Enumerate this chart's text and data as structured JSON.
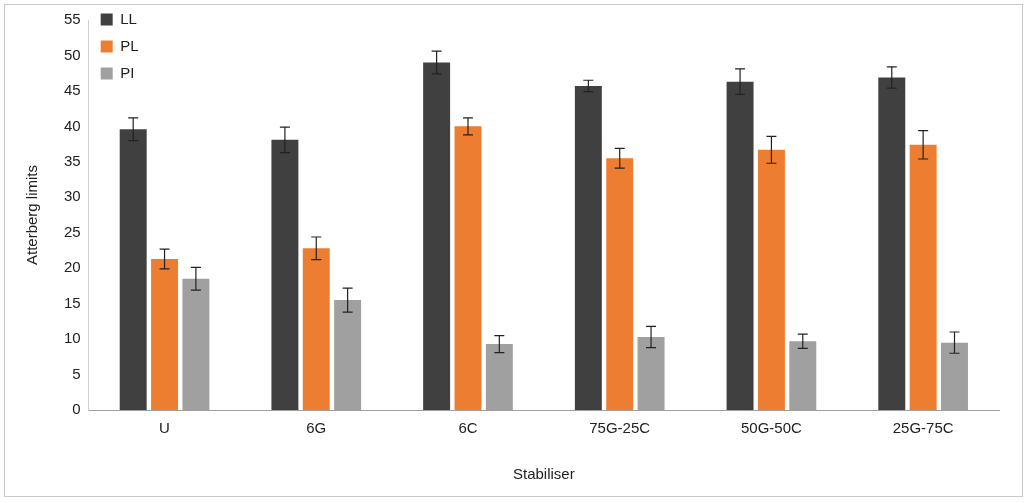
{
  "chart_data": {
    "type": "bar",
    "xlabel": "Stabiliser",
    "ylabel": "Atterberg limits",
    "categories": [
      "U",
      "6G",
      "6C",
      "75G-25C",
      "50G-50C",
      "25G-75C"
    ],
    "series": [
      {
        "name": "LL",
        "color": "#404040",
        "values": [
          39.6,
          38.1,
          49,
          45.7,
          46.3,
          46.9
        ],
        "errors": [
          1.6,
          1.8,
          1.6,
          0.8,
          1.8,
          1.5
        ]
      },
      {
        "name": "PL",
        "color": "#ed7d31",
        "values": [
          21.3,
          22.8,
          40,
          35.5,
          36.7,
          37.4
        ],
        "errors": [
          1.4,
          1.6,
          1.2,
          1.4,
          1.9,
          2
        ]
      },
      {
        "name": "PI",
        "color": "#a0a0a0",
        "values": [
          18.5,
          15.5,
          9.3,
          10.3,
          9.7,
          9.5
        ],
        "errors": [
          1.6,
          1.7,
          1.2,
          1.5,
          1,
          1.5
        ]
      }
    ],
    "ylim": [
      0,
      55
    ],
    "yticks": [
      0,
      5,
      10,
      15,
      20,
      25,
      30,
      35,
      40,
      45,
      50,
      55
    ],
    "grid": false,
    "legend": "top left"
  }
}
